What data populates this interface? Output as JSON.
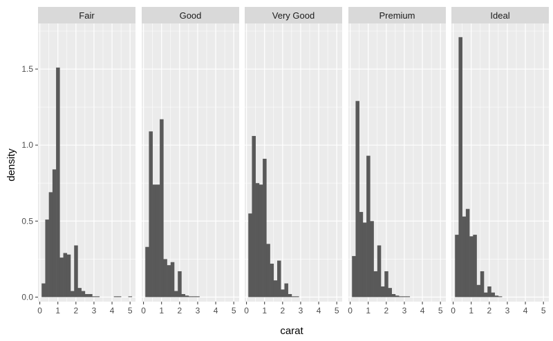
{
  "chart_data": {
    "type": "bar",
    "xlabel": "carat",
    "ylabel": "density",
    "xlim": [
      -0.1,
      5.3
    ],
    "ylim": [
      -0.03,
      1.8
    ],
    "x_ticks": [
      0,
      1,
      2,
      3,
      4,
      5
    ],
    "y_ticks": [
      0.0,
      0.5,
      1.0,
      1.5
    ],
    "y_tick_labels": [
      "0.0",
      "0.5",
      "1.0",
      "1.5"
    ],
    "bin_width": 0.2,
    "grid": true,
    "colors": {
      "bar": "#595959",
      "panel": "#ebebeb",
      "strip": "#d9d9d9",
      "grid": "#ffffff"
    },
    "facets": [
      {
        "name": "Fair",
        "bin_starts": [
          0.1,
          0.3,
          0.5,
          0.7,
          0.9,
          1.1,
          1.3,
          1.5,
          1.7,
          1.9,
          2.1,
          2.3,
          2.5,
          2.7,
          2.9,
          3.1,
          3.3,
          3.5,
          3.7,
          3.9,
          4.1,
          4.3,
          4.5,
          4.7,
          4.9
        ],
        "values": [
          0.09,
          0.51,
          0.69,
          0.84,
          1.51,
          0.26,
          0.29,
          0.28,
          0.04,
          0.34,
          0.06,
          0.04,
          0.02,
          0.02,
          0.005,
          0.005,
          0,
          0,
          0,
          0,
          0.005,
          0.005,
          0,
          0,
          0.005
        ]
      },
      {
        "name": "Good",
        "bin_starts": [
          0.1,
          0.3,
          0.5,
          0.7,
          0.9,
          1.1,
          1.3,
          1.5,
          1.7,
          1.9,
          2.1,
          2.3,
          2.5,
          2.7,
          2.9,
          3.1
        ],
        "values": [
          0.33,
          1.09,
          0.74,
          0.74,
          1.17,
          0.25,
          0.21,
          0.23,
          0.04,
          0.17,
          0.02,
          0.01,
          0.005,
          0.005,
          0.005,
          0
        ]
      },
      {
        "name": "Very Good",
        "bin_starts": [
          0.1,
          0.3,
          0.5,
          0.7,
          0.9,
          1.1,
          1.3,
          1.5,
          1.7,
          1.9,
          2.1,
          2.3,
          2.5,
          2.7
        ],
        "values": [
          0.55,
          1.06,
          0.75,
          0.74,
          0.91,
          0.35,
          0.22,
          0.11,
          0.24,
          0.05,
          0.09,
          0.02,
          0.005,
          0.005
        ]
      },
      {
        "name": "Premium",
        "bin_starts": [
          0.1,
          0.3,
          0.5,
          0.7,
          0.9,
          1.1,
          1.3,
          1.5,
          1.7,
          1.9,
          2.1,
          2.3,
          2.5,
          2.7,
          2.9,
          3.1
        ],
        "values": [
          0.27,
          1.29,
          0.56,
          0.49,
          0.93,
          0.5,
          0.17,
          0.34,
          0.07,
          0.17,
          0.06,
          0.02,
          0.01,
          0.005,
          0.005,
          0.005
        ]
      },
      {
        "name": "Ideal",
        "bin_starts": [
          0.1,
          0.3,
          0.5,
          0.7,
          0.9,
          1.1,
          1.3,
          1.5,
          1.7,
          1.9,
          2.1,
          2.3,
          2.5
        ],
        "values": [
          0.41,
          1.71,
          0.53,
          0.58,
          0.4,
          0.41,
          0.08,
          0.17,
          0.03,
          0.07,
          0.03,
          0.01,
          0.005
        ]
      }
    ]
  }
}
